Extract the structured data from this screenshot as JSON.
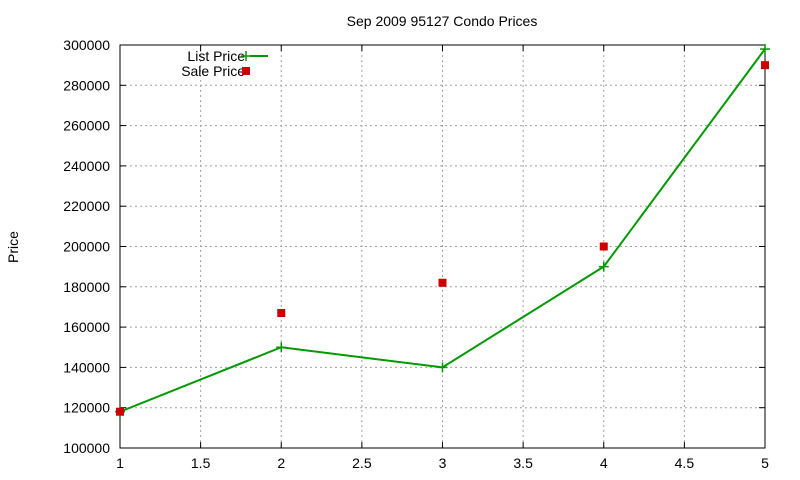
{
  "chart_data": {
    "type": "line",
    "title": "Sep 2009 95127 Condo Prices",
    "xlabel": "",
    "ylabel": "Price",
    "xlim": [
      1,
      5
    ],
    "ylim": [
      100000,
      300000
    ],
    "xticks": [
      1,
      1.5,
      2,
      2.5,
      3,
      3.5,
      4,
      4.5,
      5
    ],
    "yticks": [
      100000,
      120000,
      140000,
      160000,
      180000,
      200000,
      220000,
      240000,
      260000,
      280000,
      300000
    ],
    "grid": true,
    "legend_position": "top-left",
    "series": [
      {
        "name": "List Price",
        "style": "lines-points",
        "marker": "plus",
        "color": "#009900",
        "x": [
          1,
          2,
          3,
          4,
          5
        ],
        "y": [
          118000,
          150000,
          140000,
          190000,
          298000
        ]
      },
      {
        "name": "Sale Price",
        "style": "points",
        "marker": "square",
        "color": "#cc0000",
        "x": [
          1,
          2,
          3,
          4,
          5
        ],
        "y": [
          118000,
          167000,
          182000,
          200000,
          290000
        ]
      }
    ]
  }
}
